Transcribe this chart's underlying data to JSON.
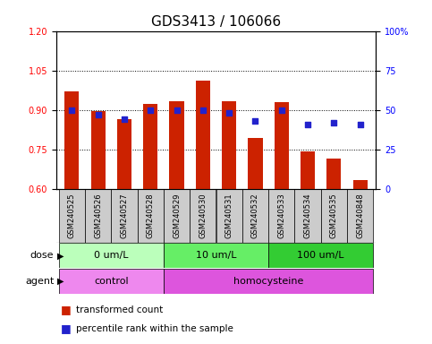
{
  "title": "GDS3413 / 106066",
  "samples": [
    "GSM240525",
    "GSM240526",
    "GSM240527",
    "GSM240528",
    "GSM240529",
    "GSM240530",
    "GSM240531",
    "GSM240532",
    "GSM240533",
    "GSM240534",
    "GSM240535",
    "GSM240848"
  ],
  "red_values": [
    0.97,
    0.895,
    0.865,
    0.925,
    0.935,
    1.01,
    0.935,
    0.795,
    0.93,
    0.745,
    0.715,
    0.635
  ],
  "blue_values": [
    50,
    47,
    44,
    50,
    50,
    50,
    48,
    43,
    50,
    41,
    42,
    41
  ],
  "ylim_left": [
    0.6,
    1.2
  ],
  "ylim_right": [
    0,
    100
  ],
  "yticks_left": [
    0.6,
    0.75,
    0.9,
    1.05,
    1.2
  ],
  "yticks_right": [
    0,
    25,
    50,
    75,
    100
  ],
  "ytick_labels_right": [
    "0",
    "25",
    "50",
    "75",
    "100%"
  ],
  "hlines": [
    0.75,
    0.9,
    1.05
  ],
  "dose_groups": [
    {
      "label": "0 um/L",
      "start": 0,
      "end": 4,
      "color": "#bbffbb"
    },
    {
      "label": "10 um/L",
      "start": 4,
      "end": 8,
      "color": "#66ee66"
    },
    {
      "label": "100 um/L",
      "start": 8,
      "end": 12,
      "color": "#33cc33"
    }
  ],
  "agent_groups": [
    {
      "label": "control",
      "start": 0,
      "end": 4,
      "color": "#ee88ee"
    },
    {
      "label": "homocysteine",
      "start": 4,
      "end": 12,
      "color": "#dd55dd"
    }
  ],
  "bar_color": "#cc2200",
  "bar_bottom": 0.6,
  "blue_color": "#2222cc",
  "blue_marker": "s",
  "blue_size": 20,
  "legend_red_label": "transformed count",
  "legend_blue_label": "percentile rank within the sample",
  "dose_label": "dose",
  "agent_label": "agent",
  "title_fontsize": 11,
  "tick_fontsize": 7,
  "bar_width": 0.55
}
